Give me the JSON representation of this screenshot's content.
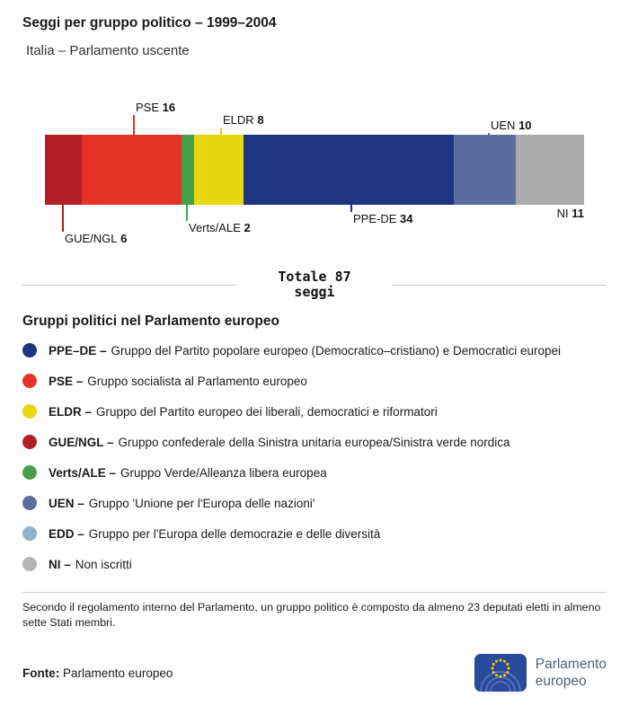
{
  "header": {
    "title": "Seggi per gruppo politico – 1999–2004",
    "subtitle": "Italia – Parlamento uscente"
  },
  "chart_data": {
    "type": "bar",
    "variant": "stacked-horizontal",
    "total": 87,
    "total_label_line1": "Totale 87",
    "total_label_line2": "seggi",
    "legend_position": "below",
    "segments": [
      {
        "group": "GUE/NGL",
        "seats": 6,
        "color": "#b41f24",
        "label_position": "below"
      },
      {
        "group": "PSE",
        "seats": 16,
        "color": "#e63327",
        "label_position": "above"
      },
      {
        "group": "Verts/ALE",
        "seats": 2,
        "color": "#46a049",
        "label_position": "below"
      },
      {
        "group": "ELDR",
        "seats": 8,
        "color": "#e6d70e",
        "label_position": "above"
      },
      {
        "group": "PPE-DE",
        "seats": 34,
        "color": "#1f3480",
        "label_position": "below"
      },
      {
        "group": "UEN",
        "seats": 10,
        "color": "#5a6d9e",
        "label_position": "above"
      },
      {
        "group": "NI",
        "seats": 11,
        "color": "#aaaaaa",
        "label_position": "below"
      }
    ]
  },
  "legend": {
    "heading": "Gruppi politici nel Parlamento europeo",
    "items": [
      {
        "abbr": "PPE–DE –",
        "desc": "Gruppo del Partito popolare europeo (Democratico–cristiano) e Democratici europei",
        "color": "#1f3480"
      },
      {
        "abbr": "PSE –",
        "desc": "Gruppo socialista al Parlamento europeo",
        "color": "#e63327"
      },
      {
        "abbr": "ELDR –",
        "desc": "Gruppo del Partito europeo dei liberali, democratici e riformatori",
        "color": "#e6d70e"
      },
      {
        "abbr": "GUE/NGL –",
        "desc": "Gruppo confederale della Sinistra unitaria europea/Sinistra verde nordica",
        "color": "#b41f24"
      },
      {
        "abbr": "Verts/ALE –",
        "desc": "Gruppo Verde/Alleanza libera europea",
        "color": "#46a049"
      },
      {
        "abbr": "UEN –",
        "desc": "Gruppo 'Unione per l'Europa delle nazioni'",
        "color": "#5a6d9e"
      },
      {
        "abbr": "EDD –",
        "desc": "Gruppo per l'Europa delle democrazie e delle diversità",
        "color": "#8fb2c8"
      },
      {
        "abbr": "NI –",
        "desc": "Non iscritti",
        "color": "#b4b4b4"
      }
    ]
  },
  "footnote": "Secondo il regolamento interno del Parlamento, un gruppo politico è composto da almeno 23 deputati eletti in almeno sette Stati membri.",
  "source": {
    "label": "Fonte:",
    "text": "Parlamento europeo"
  },
  "logo": {
    "line1": "Parlamento",
    "line2": "europeo"
  }
}
